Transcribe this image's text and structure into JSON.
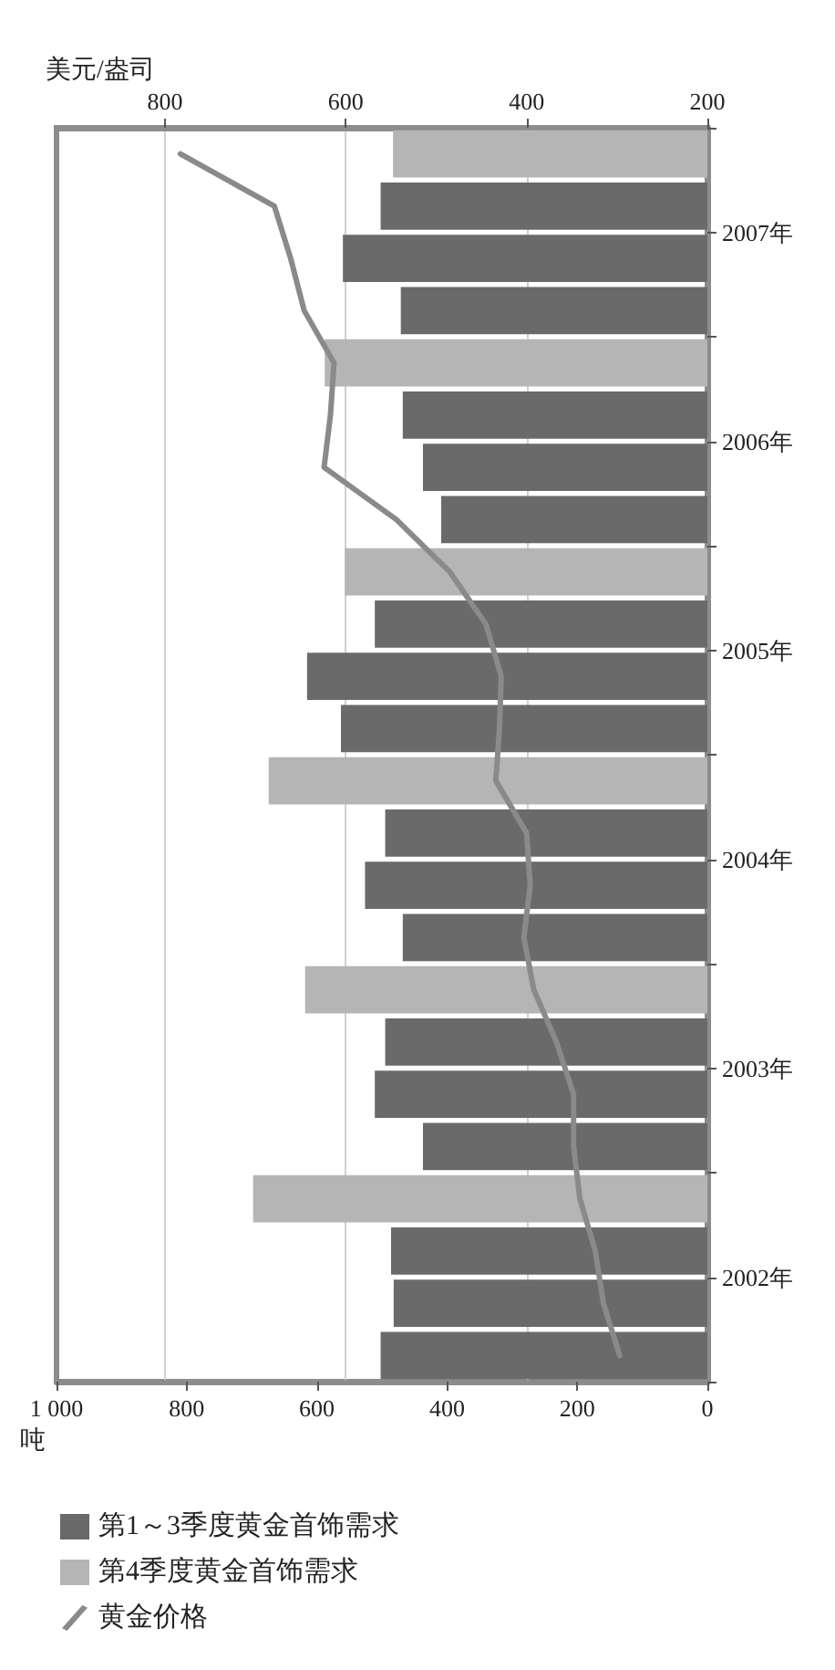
{
  "chart_data": {
    "type": "bar",
    "orientation": "horizontal",
    "xlabel": "吨",
    "x2label": "美元/盎司",
    "ylim": [
      2002,
      2008
    ],
    "yticks": [
      {
        "value": 2002,
        "label": null
      },
      {
        "value": 2002.5,
        "label": "2002年"
      },
      {
        "value": 2003,
        "label": null
      },
      {
        "value": 2003.5,
        "label": "2003年"
      },
      {
        "value": 2004,
        "label": null
      },
      {
        "value": 2004.5,
        "label": "2004年"
      },
      {
        "value": 2005,
        "label": null
      },
      {
        "value": 2005.5,
        "label": "2005年"
      },
      {
        "value": 2006,
        "label": null
      },
      {
        "value": 2006.5,
        "label": "2006年"
      },
      {
        "value": 2007,
        "label": null
      },
      {
        "value": 2007.5,
        "label": "2007年"
      },
      {
        "value": 2008,
        "label": null
      }
    ],
    "xlim": [
      1000,
      0
    ],
    "xticks": [
      0,
      200,
      400,
      600,
      800,
      {
        "value": 1000,
        "label": "1 000"
      }
    ],
    "x2lim": [
      920,
      200
    ],
    "x2ticks": [
      200,
      400,
      600,
      800
    ],
    "grid": "x2",
    "legend": "bottom",
    "marker": "none",
    "series": [
      {
        "name": "第1～3季度黄金首饰需求",
        "color": "#6a6a6a",
        "x": [
          2002.125,
          2002.375,
          2002.625,
          2003.125,
          2003.375,
          2003.625,
          2004.125,
          2004.375,
          2004.625,
          2005.125,
          2005.375,
          2005.625,
          2006.125,
          2006.375,
          2006.625,
          2007.125,
          2007.375,
          2007.625
        ],
        "values": [
          502,
          482,
          486,
          437,
          511,
          495,
          468,
          526,
          495,
          563,
          615,
          511,
          409,
          437,
          468,
          471,
          560,
          502
        ]
      },
      {
        "name": "第4季度黄金首饰需求",
        "color": "#b5b5b5",
        "x": [
          2002.875,
          2003.875,
          2004.875,
          2005.875,
          2006.875,
          2007.875
        ],
        "values": [
          698,
          618,
          674,
          557,
          588,
          483
        ]
      },
      {
        "name": "黄金价格",
        "type": "line",
        "axis": "x2",
        "color": "#8a8a8a",
        "x": [
          2002.125,
          2002.375,
          2002.625,
          2002.875,
          2003.125,
          2003.375,
          2003.625,
          2003.875,
          2004.125,
          2004.375,
          2004.625,
          2004.875,
          2005.125,
          2005.375,
          2005.625,
          2005.875,
          2006.125,
          2006.375,
          2006.625,
          2006.875,
          2007.125,
          2007.375,
          2007.625,
          2007.875
        ],
        "values": [
          297,
          315,
          324,
          341,
          348,
          348,
          367,
          392,
          403,
          396,
          400,
          434,
          430,
          428,
          445,
          485,
          544,
          624,
          617,
          613,
          646,
          661,
          679,
          783
        ]
      }
    ]
  }
}
